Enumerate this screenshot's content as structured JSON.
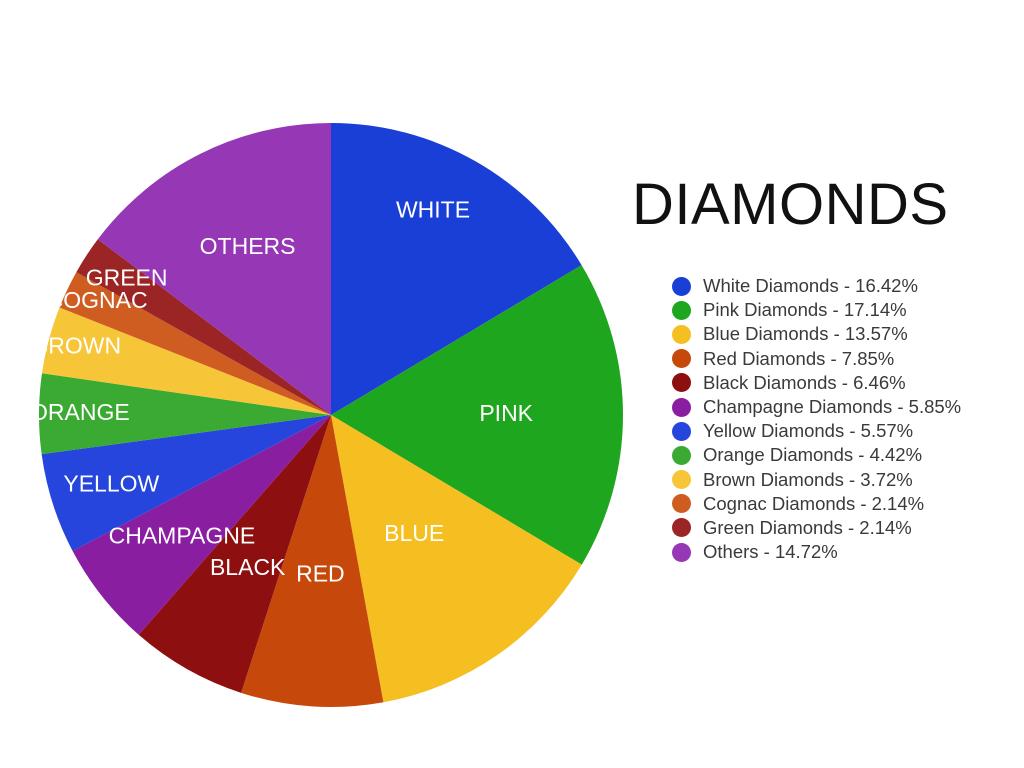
{
  "chart_data": {
    "type": "pie",
    "title": "DIAMONDS",
    "slices": [
      {
        "label": "WHITE",
        "legend": "White Diamonds - 16.42%",
        "value": 16.42,
        "color": "#1a3fd6"
      },
      {
        "label": "PINK",
        "legend": "Pink Diamonds - 17.14%",
        "value": 17.14,
        "color": "#1fa61f"
      },
      {
        "label": "BLUE",
        "legend": "Blue Diamonds - 13.57%",
        "value": 13.57,
        "color": "#f5be21"
      },
      {
        "label": "RED",
        "legend": "Red Diamonds - 7.85%",
        "value": 7.85,
        "color": "#c6490b"
      },
      {
        "label": "BLACK",
        "legend": "Black Diamonds - 6.46%",
        "value": 6.46,
        "color": "#8e0f0f"
      },
      {
        "label": "CHAMPAGNE",
        "legend": "Champagne Diamonds - 5.85%",
        "value": 5.85,
        "color": "#8a1ea0"
      },
      {
        "label": "YELLOW",
        "legend": "Yellow Diamonds - 5.57%",
        "value": 5.57,
        "color": "#2545dc"
      },
      {
        "label": "ORANGE",
        "legend": "Orange Diamonds - 4.42%",
        "value": 4.42,
        "color": "#3aaa32"
      },
      {
        "label": "BROWN",
        "legend": "Brown Diamonds - 3.72%",
        "value": 3.72,
        "color": "#f6c638"
      },
      {
        "label": "COGNAC",
        "legend": "Cognac Diamonds - 2.14%",
        "value": 2.14,
        "color": "#cf5d22"
      },
      {
        "label": "GREEN",
        "legend": "Green Diamonds - 2.14%",
        "value": 2.14,
        "color": "#9b2424"
      },
      {
        "label": "OTHERS",
        "legend": "Others - 14.72%",
        "value": 14.72,
        "color": "#9637b5"
      }
    ]
  }
}
